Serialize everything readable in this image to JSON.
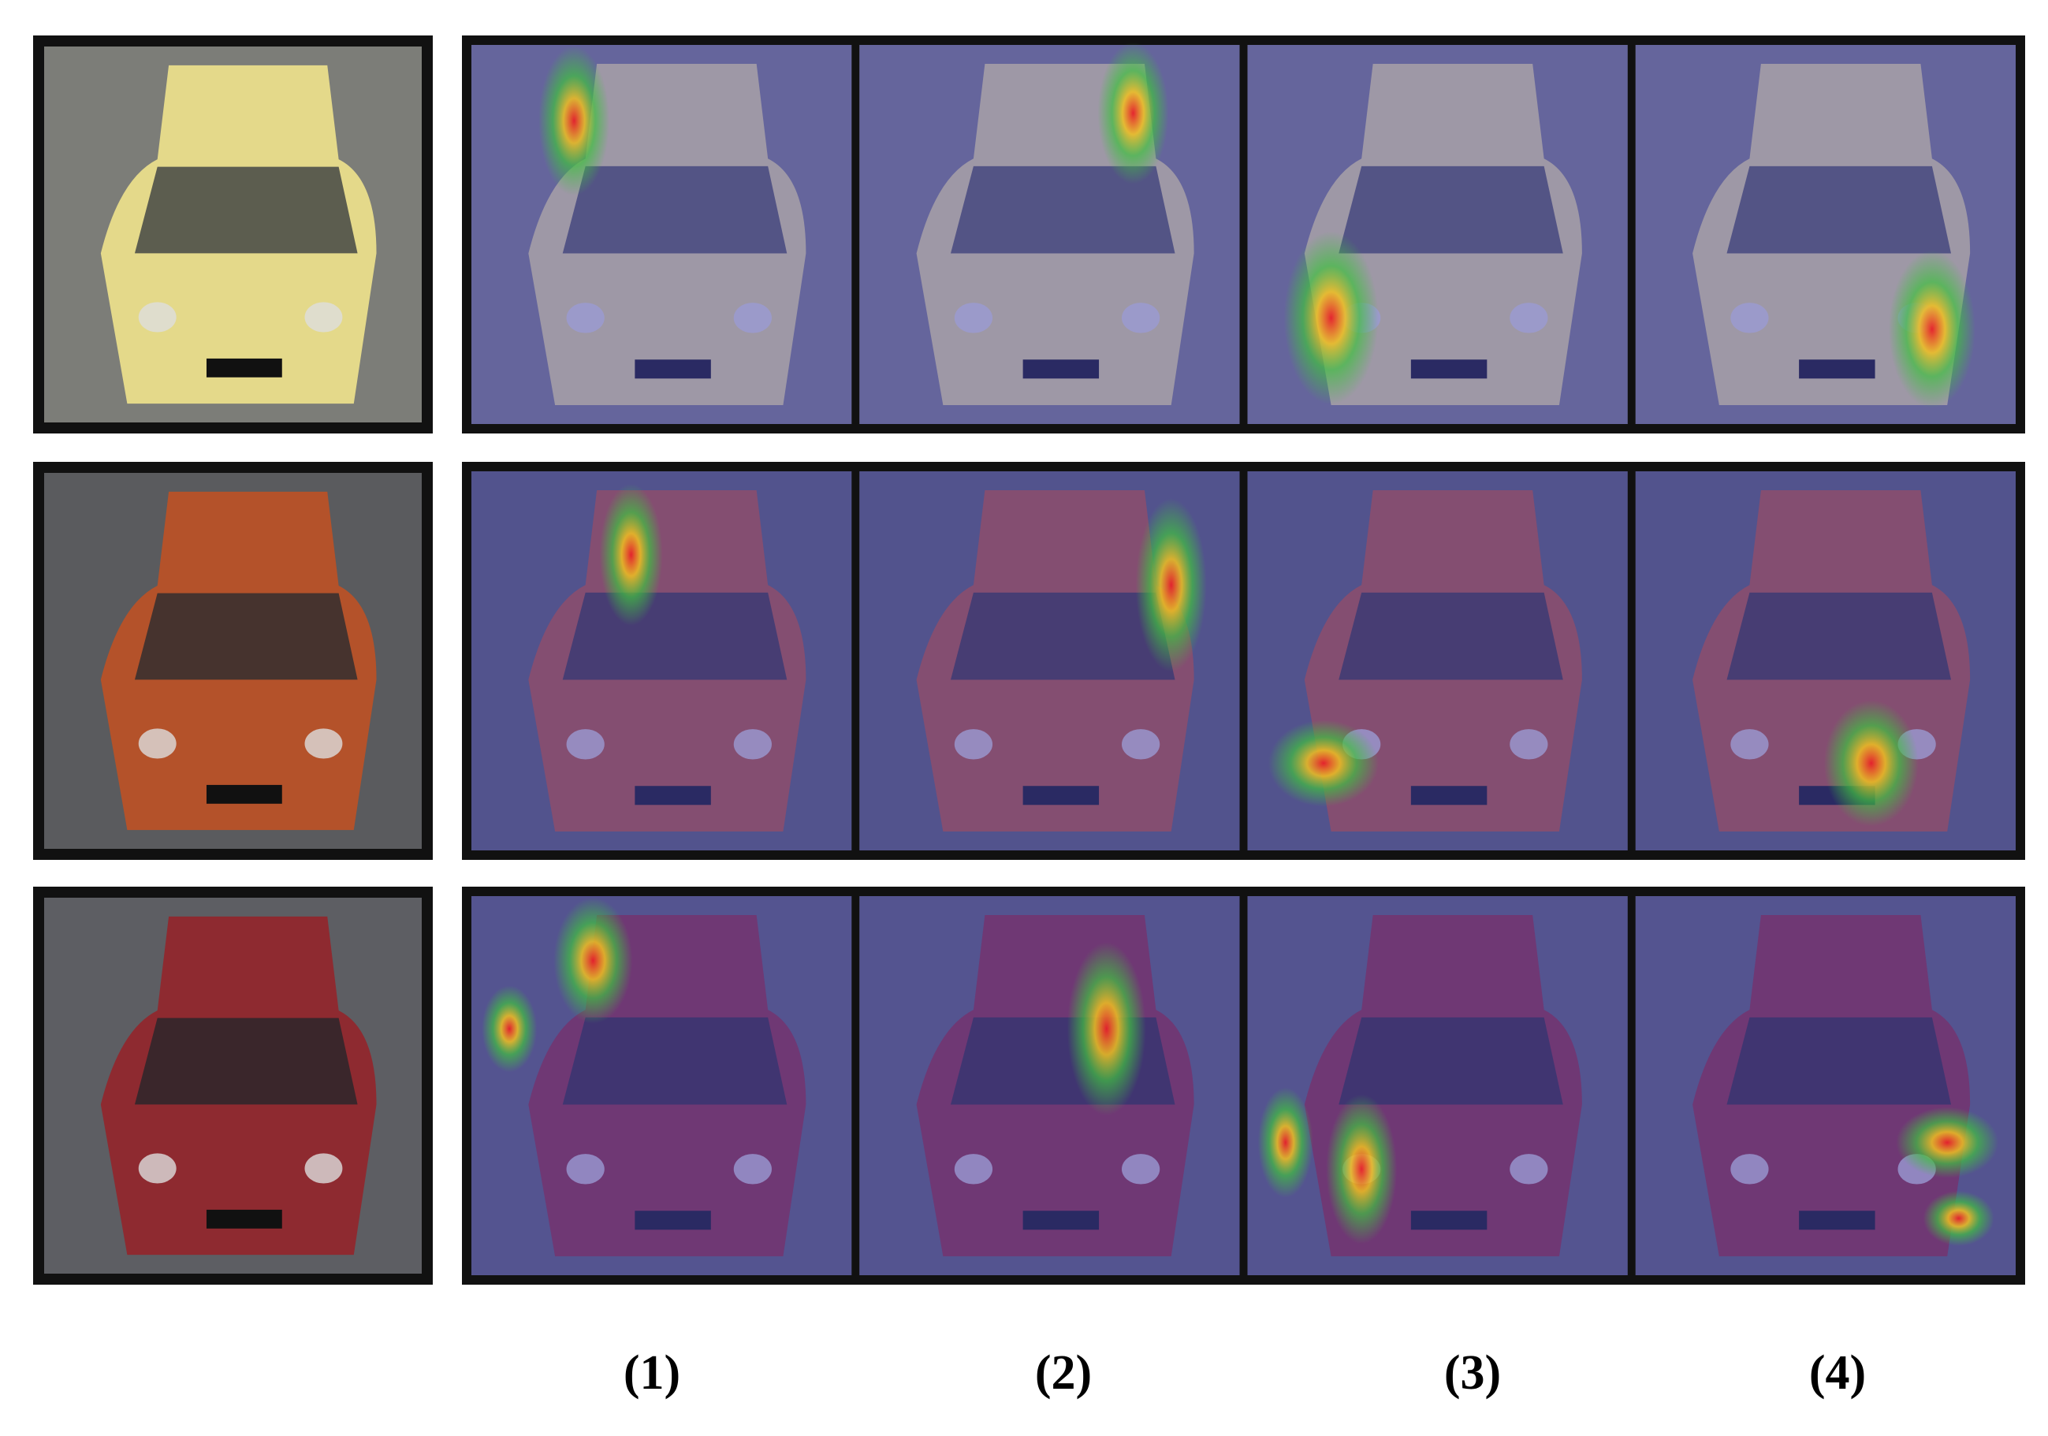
{
  "column_labels": [
    "(1)",
    "(2)",
    "(3)",
    "(4)"
  ]
}
